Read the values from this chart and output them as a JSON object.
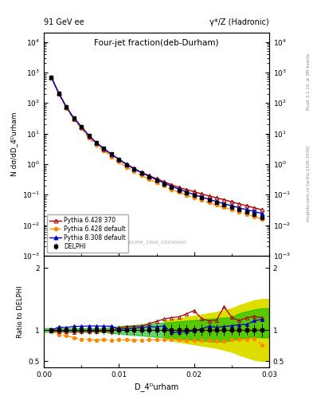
{
  "title_left": "91 GeV ee",
  "title_right": "γ*/Z (Hadronic)",
  "plot_title": "Four-jet fraction(deb-Durham)",
  "xlabel": "D_4ᴰurham",
  "ylabel_main": "N dσ/dD_4ᴰurham",
  "ylabel_ratio": "Ratio to DELPHI",
  "watermark": "DELPHI_1996_S3430090",
  "right_label": "mcplots.cern.ch [arXiv:1306.3436]",
  "right_label2": "Rivet 3.1.10, ≥ 3M events",
  "xdata": [
    0.001,
    0.002,
    0.003,
    0.004,
    0.005,
    0.006,
    0.007,
    0.008,
    0.009,
    0.01,
    0.011,
    0.012,
    0.013,
    0.014,
    0.015,
    0.016,
    0.017,
    0.018,
    0.019,
    0.02,
    0.021,
    0.022,
    0.023,
    0.024,
    0.025,
    0.026,
    0.027,
    0.028,
    0.029
  ],
  "delphi_y": [
    700,
    210,
    75,
    32,
    17,
    8.5,
    5.0,
    3.2,
    2.1,
    1.4,
    0.95,
    0.68,
    0.5,
    0.38,
    0.29,
    0.225,
    0.175,
    0.14,
    0.115,
    0.095,
    0.078,
    0.065,
    0.055,
    0.046,
    0.038,
    0.032,
    0.027,
    0.022,
    0.018
  ],
  "delphi_yerr": [
    30,
    10,
    4,
    2,
    1,
    0.5,
    0.3,
    0.2,
    0.15,
    0.1,
    0.07,
    0.05,
    0.04,
    0.03,
    0.025,
    0.02,
    0.015,
    0.012,
    0.01,
    0.008,
    0.007,
    0.006,
    0.005,
    0.004,
    0.003,
    0.003,
    0.002,
    0.002,
    0.002
  ],
  "py6_370_y": [
    690,
    205,
    73,
    31,
    16.5,
    8.3,
    4.9,
    3.15,
    2.05,
    1.45,
    1.0,
    0.72,
    0.53,
    0.42,
    0.33,
    0.265,
    0.21,
    0.17,
    0.145,
    0.125,
    0.105,
    0.09,
    0.078,
    0.068,
    0.058,
    0.05,
    0.043,
    0.037,
    0.032
  ],
  "py6_def_y": [
    680,
    195,
    68,
    28,
    14.5,
    7.2,
    4.2,
    2.7,
    1.75,
    1.18,
    0.8,
    0.57,
    0.42,
    0.32,
    0.245,
    0.19,
    0.148,
    0.118,
    0.096,
    0.079,
    0.065,
    0.054,
    0.045,
    0.038,
    0.032,
    0.027,
    0.023,
    0.019,
    0.016
  ],
  "py8_def_y": [
    695,
    208,
    74,
    32,
    17,
    8.5,
    5.0,
    3.2,
    2.1,
    1.42,
    0.97,
    0.7,
    0.52,
    0.4,
    0.305,
    0.24,
    0.188,
    0.15,
    0.122,
    0.1,
    0.083,
    0.07,
    0.059,
    0.05,
    0.043,
    0.037,
    0.032,
    0.028,
    0.024
  ],
  "ratio_py6_370": [
    0.986,
    0.976,
    0.973,
    0.969,
    0.971,
    0.976,
    0.98,
    0.984,
    0.976,
    1.036,
    1.053,
    1.059,
    1.06,
    1.105,
    1.138,
    1.178,
    1.2,
    1.214,
    1.261,
    1.316,
    1.185,
    1.148,
    1.16,
    1.38,
    1.205,
    1.15,
    1.2,
    1.22,
    1.2
  ],
  "ratio_py6_def": [
    0.971,
    0.929,
    0.907,
    0.875,
    0.853,
    0.847,
    0.84,
    0.844,
    0.833,
    0.843,
    0.842,
    0.838,
    0.84,
    0.842,
    0.845,
    0.844,
    0.846,
    0.843,
    0.835,
    0.832,
    0.833,
    0.831,
    0.818,
    0.826,
    0.842,
    0.844,
    0.852,
    0.864,
    0.76
  ],
  "ratio_py8_def": [
    0.993,
    1.05,
    1.04,
    1.06,
    1.06,
    1.065,
    1.065,
    1.062,
    1.063,
    1.014,
    1.021,
    1.029,
    1.04,
    1.053,
    1.052,
    1.067,
    0.96,
    0.965,
    0.975,
    0.985,
    1.02,
    1.06,
    1.045,
    1.057,
    1.07,
    1.085,
    1.09,
    1.15,
    1.17
  ],
  "green_band_x": [
    0.0,
    0.001,
    0.002,
    0.003,
    0.004,
    0.005,
    0.006,
    0.007,
    0.008,
    0.009,
    0.01,
    0.011,
    0.012,
    0.013,
    0.014,
    0.015,
    0.016,
    0.017,
    0.018,
    0.019,
    0.02,
    0.021,
    0.022,
    0.023,
    0.024,
    0.025,
    0.026,
    0.027,
    0.028,
    0.029,
    0.03
  ],
  "green_band_lo": [
    0.97,
    0.97,
    0.97,
    0.97,
    0.97,
    0.97,
    0.97,
    0.97,
    0.97,
    0.95,
    0.94,
    0.93,
    0.92,
    0.91,
    0.9,
    0.89,
    0.88,
    0.87,
    0.86,
    0.85,
    0.84,
    0.83,
    0.82,
    0.81,
    0.82,
    0.83,
    0.87,
    0.88,
    0.89,
    0.88,
    0.88
  ],
  "green_band_hi": [
    1.03,
    1.03,
    1.03,
    1.03,
    1.03,
    1.03,
    1.03,
    1.03,
    1.03,
    1.05,
    1.06,
    1.07,
    1.08,
    1.09,
    1.1,
    1.11,
    1.12,
    1.13,
    1.14,
    1.15,
    1.16,
    1.17,
    1.18,
    1.19,
    1.2,
    1.21,
    1.27,
    1.3,
    1.33,
    1.35,
    1.35
  ],
  "yellow_band_x": [
    0.016,
    0.017,
    0.018,
    0.019,
    0.02,
    0.021,
    0.022,
    0.023,
    0.024,
    0.025,
    0.026,
    0.027,
    0.028,
    0.029,
    0.03
  ],
  "yellow_band_lo": [
    0.85,
    0.83,
    0.81,
    0.79,
    0.77,
    0.75,
    0.73,
    0.71,
    0.68,
    0.65,
    0.6,
    0.56,
    0.52,
    0.5,
    0.5
  ],
  "yellow_band_hi": [
    1.15,
    1.17,
    1.19,
    1.21,
    1.23,
    1.25,
    1.27,
    1.29,
    1.32,
    1.35,
    1.4,
    1.44,
    1.48,
    1.5,
    1.5
  ],
  "color_delphi": "#000000",
  "color_py6_370": "#aa0000",
  "color_py6_def": "#ff8800",
  "color_py8_def": "#0000cc",
  "color_green": "#00bb00",
  "color_yellow": "#dddd00",
  "xlim": [
    0.0,
    0.03
  ],
  "ylim_main": [
    0.001,
    20000.0
  ],
  "ylim_ratio": [
    0.4,
    2.2
  ]
}
